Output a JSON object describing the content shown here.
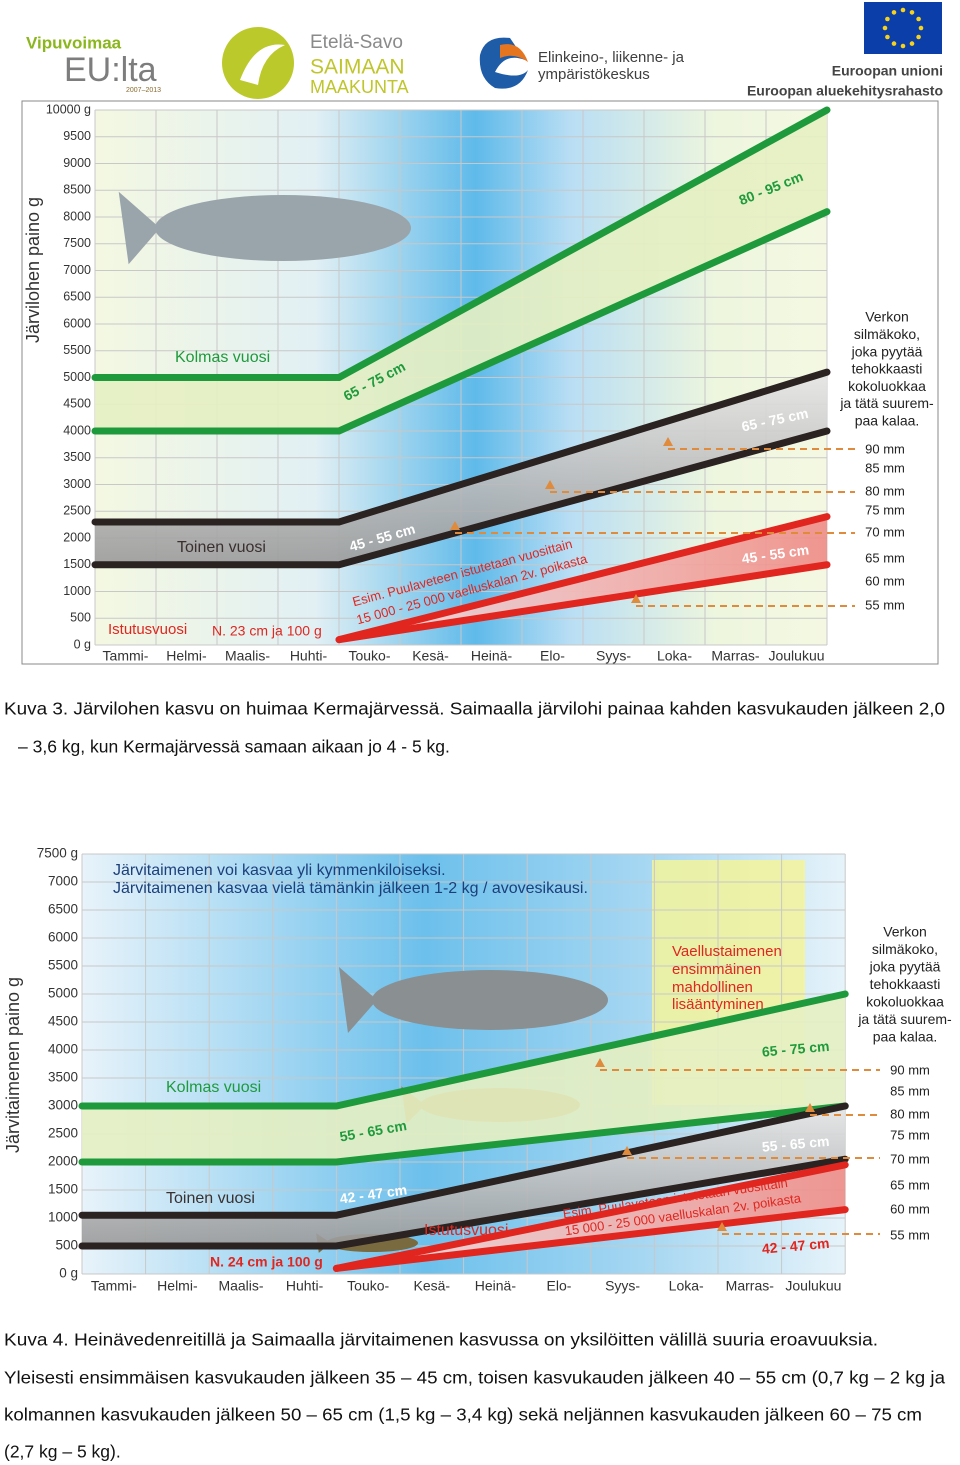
{
  "logos": {
    "vipuvoimaa": "Vipuvoimaa",
    "eu_lta": "EU:lta",
    "years": "2007–2013",
    "etela_savo": "Etelä-Savo",
    "saimaan": "SAIMAAN",
    "maakunta": "MAAKUNTA",
    "ely1": "Elinkeino-, liikenne- ja",
    "ely2": "ympäristökeskus",
    "eu1": "Euroopan unioni",
    "eu2": "Euroopan aluekehitysrahasto"
  },
  "figures": [
    {
      "y_label": "Järvilohen paino g",
      "ylim": [
        0,
        10000
      ],
      "yticks": [
        {
          "value": 0,
          "label": "0 g"
        },
        {
          "value": 500,
          "label": "500"
        },
        {
          "value": 1000,
          "label": "1000"
        },
        {
          "value": 1500,
          "label": "1500"
        },
        {
          "value": 2000,
          "label": "2000"
        },
        {
          "value": 2500,
          "label": "2500"
        },
        {
          "value": 3000,
          "label": "3000"
        },
        {
          "value": 3500,
          "label": "3500"
        },
        {
          "value": 4000,
          "label": "4000"
        },
        {
          "value": 4500,
          "label": "4500"
        },
        {
          "value": 5000,
          "label": "5000"
        },
        {
          "value": 5500,
          "label": "5500"
        },
        {
          "value": 6000,
          "label": "6000"
        },
        {
          "value": 6500,
          "label": "6500"
        },
        {
          "value": 7000,
          "label": "7000"
        },
        {
          "value": 7500,
          "label": "7500"
        },
        {
          "value": 8000,
          "label": "8000"
        },
        {
          "value": 8500,
          "label": "8500"
        },
        {
          "value": 9000,
          "label": "9000"
        },
        {
          "value": 9500,
          "label": "9500"
        },
        {
          "value": 10000,
          "label": "10000 g"
        }
      ],
      "months": [
        "Tammi-",
        "Helmi-",
        "Maalis-",
        "Huhti-",
        "Touko-",
        "Kesä-",
        "Heinä-",
        "Elo-",
        "Syys-",
        "Loka-",
        "Marras-",
        "Joulukuu"
      ],
      "bands": [
        {
          "color": "#1e9a3c",
          "x": [
            0,
            4,
            12
          ],
          "lower": [
            4000,
            4000,
            8100
          ],
          "upper": [
            5000,
            5000,
            10000
          ]
        },
        {
          "color": "#2b2222",
          "x": [
            0,
            4,
            12
          ],
          "lower": [
            1500,
            1500,
            4000
          ],
          "upper": [
            2300,
            2300,
            5100
          ]
        },
        {
          "color": "#e0261f",
          "x": [
            4,
            12
          ],
          "lower": [
            100,
            1500
          ],
          "upper": [
            100,
            2400
          ]
        }
      ],
      "labels": [
        "Kolmas vuosi",
        "Toinen vuosi",
        "Istutusvuosi",
        "N. 23 cm ja 100 g",
        "65 - 75 cm",
        "80 - 95 cm",
        "45 - 55 cm",
        "65 - 75 cm",
        "45 - 55 cm",
        "Esim. Puulaveteen istutetaan vuosittain",
        "15 000 - 25 000 vaelluskalan 2v. poikasta"
      ],
      "notes": [],
      "mesh_title": [
        "Verkon",
        "silmäkoko,",
        "joka pyytää",
        "tehokkaasti",
        "kokoluokkaa",
        "ja tätä suurem-",
        "paa kalaa."
      ],
      "mesh_sizes": [
        "90 mm",
        "85 mm",
        "80 mm",
        "75 mm",
        "70 mm",
        "65 mm",
        "60 mm",
        "55 mm"
      ]
    },
    {
      "y_label": "Järvitaimenen paino g",
      "ylim": [
        0,
        7500
      ],
      "yticks": [
        {
          "value": 0,
          "label": "0 g"
        },
        {
          "value": 500,
          "label": "500"
        },
        {
          "value": 1000,
          "label": "1000"
        },
        {
          "value": 1500,
          "label": "1500"
        },
        {
          "value": 2000,
          "label": "2000"
        },
        {
          "value": 2500,
          "label": "2500"
        },
        {
          "value": 3000,
          "label": "3000"
        },
        {
          "value": 3500,
          "label": "3500"
        },
        {
          "value": 4000,
          "label": "4000"
        },
        {
          "value": 4500,
          "label": "4500"
        },
        {
          "value": 5000,
          "label": "5000"
        },
        {
          "value": 5500,
          "label": "5500"
        },
        {
          "value": 6000,
          "label": "6000"
        },
        {
          "value": 6500,
          "label": "6500"
        },
        {
          "value": 7000,
          "label": "7000"
        },
        {
          "value": 7500,
          "label": "7500 g"
        }
      ],
      "months": [
        "Tammi-",
        "Helmi-",
        "Maalis-",
        "Huhti-",
        "Touko-",
        "Kesä-",
        "Heinä-",
        "Elo-",
        "Syys-",
        "Loka-",
        "Marras-",
        "Joulukuu"
      ],
      "bands": [
        {
          "color": "#1e9a3c",
          "x": [
            0,
            4,
            12
          ],
          "lower": [
            2000,
            2000,
            3000
          ],
          "upper": [
            3000,
            3000,
            5000
          ]
        },
        {
          "color": "#2b2222",
          "x": [
            0,
            4,
            12
          ],
          "lower": [
            500,
            500,
            2050
          ],
          "upper": [
            1050,
            1050,
            3000
          ]
        },
        {
          "color": "#e0261f",
          "x": [
            4,
            12
          ],
          "lower": [
            100,
            1150
          ],
          "upper": [
            100,
            1950
          ]
        }
      ],
      "labels": [
        "Kolmas vuosi",
        "Toinen vuosi",
        "Istutusvuosi",
        "N. 24 cm ja 100 g",
        "55 - 65 cm",
        "65 - 75 cm",
        "42 - 47 cm",
        "55 - 65 cm",
        "42 - 47 cm",
        "Esim. Puulaveteen istutetaan vuosittain",
        "15 000 - 25 000 vaelluskalan 2v. poikasta"
      ],
      "notes": [
        "Järvitaimenen voi kasvaa yli kymmenkiloiseksi.",
        "Järvitaimenen kasvaa vielä tämänkin jälkeen 1-2 kg / avovesikausi.",
        "Vaellustaimenen",
        "ensimmäinen",
        "mahdollinen",
        "lisääntyminen"
      ],
      "mesh_title": [
        "Verkon",
        "silmäkoko,",
        "joka pyytää",
        "tehokkaasti",
        "kokoluokkaa",
        "ja tätä suurem-",
        "paa kalaa."
      ],
      "mesh_sizes": [
        "90 mm",
        "85 mm",
        "80 mm",
        "75 mm",
        "70 mm",
        "65 mm",
        "60 mm",
        "55 mm"
      ]
    }
  ],
  "captions": [
    [
      "Kuva 3. Järvilohen kasvu on huimaa Kermajärvessä. Saimaalla järvilohi painaa kahden kasvukauden jälkeen 2,0",
      "– 3,6 kg, kun Kermajärvessä samaan aikaan jo 4 - 5 kg."
    ],
    [
      "Kuva 4. Heinävedenreitillä ja Saimaalla järvitaimenen kasvussa on yksilöitten välillä suuria eroavuuksia.",
      "Yleisesti ensimmäisen kasvukauden jälkeen 35 – 45 cm, toisen kasvukauden jälkeen 40 – 55 cm (0,7 kg – 2 kg ja",
      "kolmannen kasvukauden jälkeen 50 – 65 cm (1,5 kg – 3,4 kg) sekä neljännen kasvukauden jälkeen 60 – 75 cm",
      "(2,7 kg – 5 kg)."
    ]
  ]
}
